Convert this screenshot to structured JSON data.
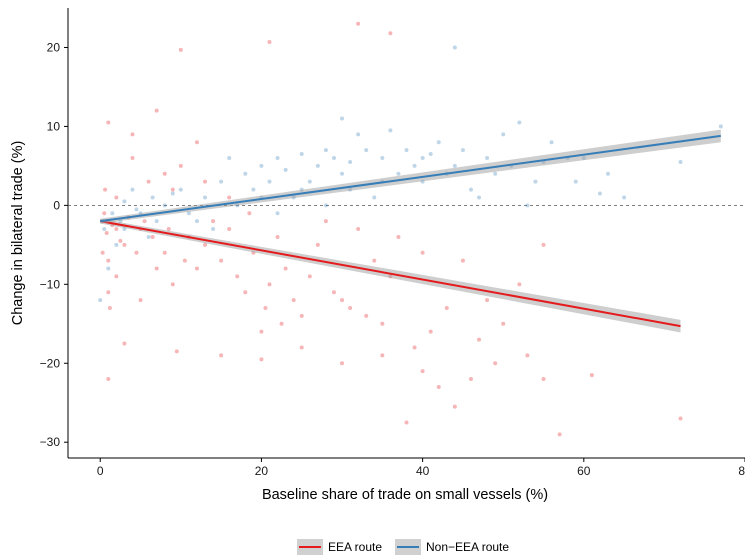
{
  "chart_data": {
    "type": "scatter",
    "xlabel": "Baseline share of trade on small vessels (%)",
    "ylabel": "Change in bilateral trade (%)",
    "xlim": [
      -4,
      80
    ],
    "ylim": [
      -32,
      25
    ],
    "x_ticks": [
      0,
      20,
      40,
      60,
      80
    ],
    "y_ticks": [
      -30,
      -20,
      -10,
      0,
      10,
      20
    ],
    "x_tick_labels": [
      "0",
      "20",
      "40",
      "60",
      "80"
    ],
    "y_tick_labels": [
      "−30",
      "−20",
      "−10",
      "0",
      "10",
      "20"
    ],
    "reference_line_y": 0,
    "grid": false,
    "legend_position": "bottom",
    "series": [
      {
        "name": "EEA route",
        "color": "#e41a1c",
        "fit": {
          "x_start": 0,
          "y_start": -2.0,
          "x_end": 72,
          "y_end": -15.3
        },
        "ci_halfwidth": {
          "start": 0.3,
          "end": 0.8
        },
        "points": [
          [
            9.5,
            -18.5
          ],
          [
            15,
            -19
          ],
          [
            20,
            -19.5
          ],
          [
            25,
            -18
          ],
          [
            30,
            -20
          ],
          [
            35,
            -19
          ],
          [
            40,
            -21
          ],
          [
            42,
            -23
          ],
          [
            44,
            -25.5
          ],
          [
            46,
            -22
          ],
          [
            38,
            -27.5
          ],
          [
            55,
            -22
          ],
          [
            61,
            -21.5
          ],
          [
            57,
            -29
          ],
          [
            72,
            -27
          ],
          [
            1,
            -22
          ],
          [
            50,
            -15
          ],
          [
            45,
            -7
          ],
          [
            48,
            -12
          ],
          [
            52,
            -10
          ],
          [
            55,
            -5
          ],
          [
            35,
            -15
          ],
          [
            30,
            -12
          ],
          [
            25,
            -14
          ],
          [
            20,
            -16
          ],
          [
            18,
            -11
          ],
          [
            12,
            -8
          ],
          [
            8,
            -6
          ],
          [
            5,
            -12
          ],
          [
            3,
            -17.5
          ],
          [
            28,
            -2
          ],
          [
            32,
            -3
          ],
          [
            22,
            -4
          ],
          [
            14,
            -2
          ],
          [
            6,
            3
          ],
          [
            10,
            5
          ],
          [
            4,
            9
          ],
          [
            1,
            10.5
          ],
          [
            7,
            12
          ],
          [
            12,
            8
          ],
          [
            2,
            -3
          ],
          [
            3,
            -5
          ],
          [
            1,
            -7
          ],
          [
            0.5,
            -1
          ],
          [
            2,
            1
          ],
          [
            5,
            -3
          ],
          [
            7,
            -8
          ],
          [
            9,
            -10
          ],
          [
            11,
            -4
          ],
          [
            15,
            -7
          ],
          [
            17,
            -9
          ],
          [
            19,
            -6
          ],
          [
            21,
            -10
          ],
          [
            23,
            -8
          ],
          [
            26,
            -9
          ],
          [
            29,
            -11
          ],
          [
            31,
            -13
          ],
          [
            33,
            -14
          ],
          [
            36,
            -9
          ],
          [
            39,
            -18
          ],
          [
            41,
            -16
          ],
          [
            43,
            -13
          ],
          [
            47,
            -17
          ],
          [
            49,
            -20
          ],
          [
            53,
            -19
          ],
          [
            40,
            -6
          ],
          [
            37,
            -4
          ],
          [
            34,
            -7
          ],
          [
            27,
            -5
          ],
          [
            24,
            -12
          ],
          [
            0.8,
            -3.5
          ],
          [
            1.5,
            -2.5
          ],
          [
            2.5,
            -4.5
          ],
          [
            3.5,
            -1.5
          ],
          [
            4.5,
            -6
          ],
          [
            5.5,
            -2
          ],
          [
            6.5,
            -4
          ],
          [
            8.5,
            -3
          ],
          [
            10.5,
            -7
          ],
          [
            13,
            -5
          ],
          [
            16,
            -3
          ],
          [
            18.5,
            -1
          ],
          [
            20.5,
            -13
          ],
          [
            22.5,
            -15
          ],
          [
            8,
            4
          ],
          [
            4,
            6
          ],
          [
            9,
            2
          ],
          [
            13,
            3
          ],
          [
            16,
            1
          ],
          [
            2,
            -9
          ],
          [
            1,
            -11
          ],
          [
            0.3,
            -6
          ],
          [
            0.6,
            2
          ],
          [
            1.2,
            -13
          ]
        ]
      },
      {
        "name": "Non−EEA route",
        "color": "#377eb8",
        "fit": {
          "x_start": 0,
          "y_start": -2.0,
          "x_end": 77,
          "y_end": 8.8
        },
        "ci_halfwidth": {
          "start": 0.3,
          "end": 0.8
        },
        "points": [
          [
            0,
            -12
          ],
          [
            1,
            -8
          ],
          [
            2,
            -5
          ],
          [
            3,
            -3
          ],
          [
            5,
            -1
          ],
          [
            8,
            0
          ],
          [
            10,
            2
          ],
          [
            12,
            -2
          ],
          [
            15,
            3
          ],
          [
            18,
            4
          ],
          [
            20,
            5
          ],
          [
            22,
            6
          ],
          [
            25,
            2
          ],
          [
            28,
            7
          ],
          [
            30,
            4
          ],
          [
            32,
            9
          ],
          [
            35,
            6
          ],
          [
            38,
            7
          ],
          [
            40,
            3
          ],
          [
            42,
            8
          ],
          [
            44,
            5
          ],
          [
            46,
            2
          ],
          [
            48,
            6
          ],
          [
            50,
            9
          ],
          [
            52,
            10.5
          ],
          [
            55,
            5.5
          ],
          [
            58,
            6
          ],
          [
            60,
            6
          ],
          [
            62,
            1.5
          ],
          [
            65,
            1
          ],
          [
            72,
            5.5
          ],
          [
            77,
            10
          ],
          [
            44,
            20
          ],
          [
            30,
            11
          ],
          [
            26,
            3
          ],
          [
            24,
            1
          ],
          [
            14,
            -3
          ],
          [
            6,
            -4
          ],
          [
            4,
            2
          ],
          [
            16,
            6
          ],
          [
            36,
            9.5
          ],
          [
            40,
            6
          ],
          [
            47,
            1
          ],
          [
            53,
            0
          ],
          [
            34,
            1
          ],
          [
            28,
            0
          ],
          [
            22,
            -1
          ],
          [
            19,
            2
          ],
          [
            17,
            0
          ],
          [
            11,
            -1
          ],
          [
            9,
            1.5
          ],
          [
            7,
            -2
          ],
          [
            3,
            0.5
          ],
          [
            1.5,
            -1
          ],
          [
            0.5,
            -3
          ],
          [
            2.5,
            -2
          ],
          [
            4.5,
            -0.5
          ],
          [
            6.5,
            1
          ],
          [
            13,
            1
          ],
          [
            21,
            3
          ],
          [
            23,
            4.5
          ],
          [
            27,
            5
          ],
          [
            29,
            6
          ],
          [
            31,
            5.5
          ],
          [
            33,
            7
          ],
          [
            37,
            4
          ],
          [
            39,
            5
          ],
          [
            41,
            6.5
          ],
          [
            43,
            4
          ],
          [
            45,
            7
          ],
          [
            49,
            4
          ],
          [
            51,
            5
          ],
          [
            54,
            3
          ],
          [
            56,
            8
          ],
          [
            59,
            3
          ],
          [
            63,
            4
          ],
          [
            35,
            3
          ],
          [
            31,
            2
          ],
          [
            25,
            6.5
          ],
          [
            20,
            1
          ]
        ]
      }
    ],
    "outlier_points": [
      [
        10,
        19.7
      ],
      [
        21,
        20.7
      ],
      [
        32,
        23
      ],
      [
        36,
        21.8
      ]
    ]
  }
}
